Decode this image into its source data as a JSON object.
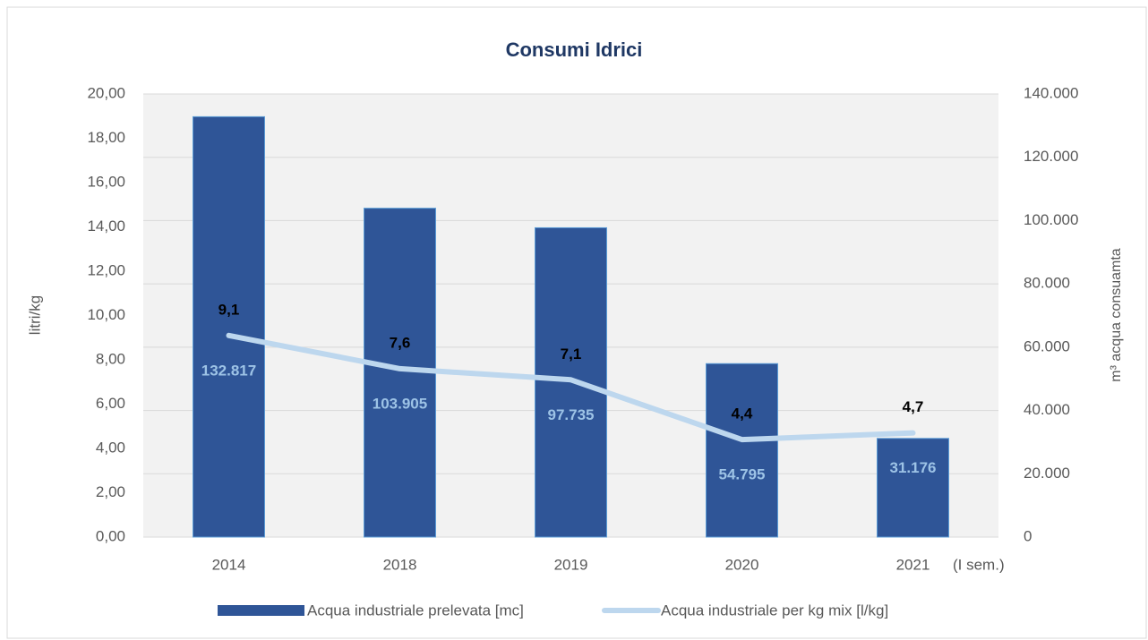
{
  "chart_data": {
    "type": "bar-line",
    "title": "Consumi Idrici",
    "categories": [
      "2014",
      "2018",
      "2019",
      "2020",
      "2021"
    ],
    "annotation": "(I sem.)",
    "y_label": "litri/kg",
    "y2_label": "m³ acqua consuamta",
    "ylim": [
      0,
      20
    ],
    "yticks": [
      {
        "value": 0,
        "label": "0,00"
      },
      {
        "value": 2,
        "label": "2,00"
      },
      {
        "value": 4,
        "label": "4,00"
      },
      {
        "value": 6,
        "label": "6,00"
      },
      {
        "value": 8,
        "label": "8,00"
      },
      {
        "value": 10,
        "label": "10,00"
      },
      {
        "value": 12,
        "label": "12,00"
      },
      {
        "value": 14,
        "label": "14,00"
      },
      {
        "value": 16,
        "label": "16,00"
      },
      {
        "value": 18,
        "label": "18,00"
      },
      {
        "value": 20,
        "label": "20,00"
      }
    ],
    "y2lim": [
      0,
      140000
    ],
    "y2ticks": [
      0,
      {
        "value": 20000,
        "label": "20.000"
      },
      {
        "value": 40000,
        "label": "40.000"
      },
      {
        "value": 60000,
        "label": "60.000"
      },
      {
        "value": 80000,
        "label": "80.000"
      },
      {
        "value": 100000,
        "label": "100.000"
      },
      {
        "value": 120000,
        "label": "120.000"
      },
      {
        "value": 140000,
        "label": "140.000"
      }
    ],
    "grid": true,
    "legend": "bottom",
    "series": [
      {
        "name": "Acqua industriale prelevata [mc]",
        "kind": "bar",
        "axis": "y2",
        "color": "#2f5597",
        "values": [
          132817,
          103905,
          97735,
          54795,
          31176
        ],
        "value_labels": [
          "132.817",
          "103.905",
          "97.735",
          "54.795",
          "31.176"
        ]
      },
      {
        "name": "Acqua industriale per kg mix [l/kg]",
        "kind": "line",
        "axis": "y",
        "color": "#bdd7ee",
        "values": [
          9.1,
          7.6,
          7.1,
          4.4,
          4.7
        ],
        "value_labels": [
          "9,1",
          "7,6",
          "7,1",
          "4,4",
          "4,7"
        ]
      }
    ]
  }
}
